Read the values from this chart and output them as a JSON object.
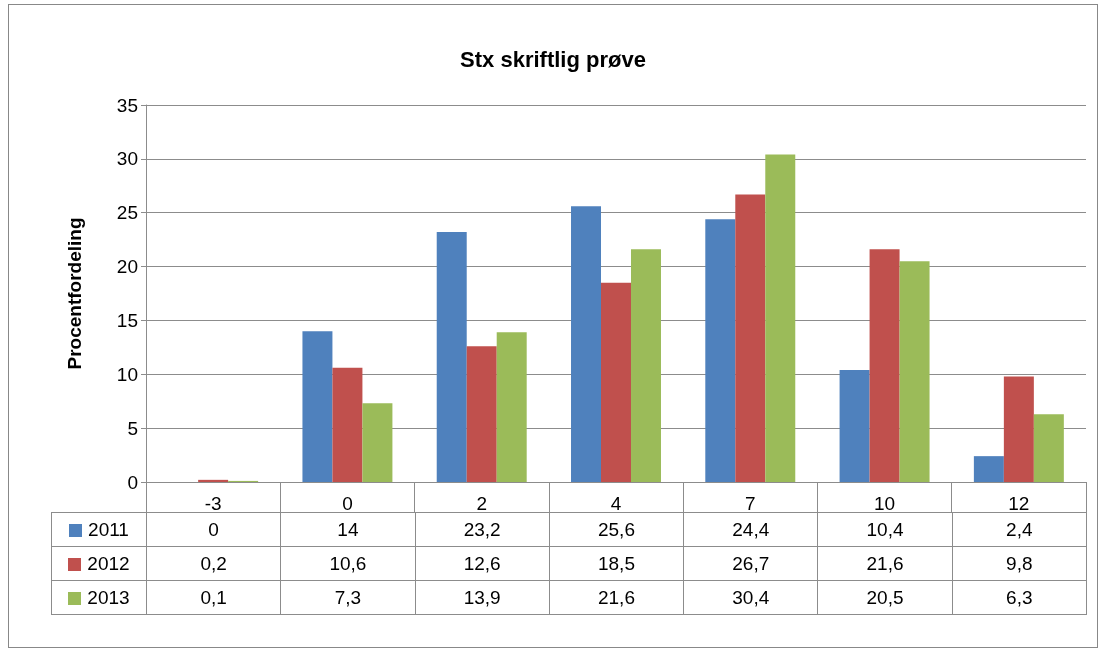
{
  "chart_data": {
    "type": "bar",
    "title": "Stx skriftlig prøve",
    "ylabel": "Procentfordeling",
    "categories": [
      "-3",
      "0",
      "2",
      "4",
      "7",
      "10",
      "12"
    ],
    "series": [
      {
        "name": "2011",
        "color": "#4f81bd",
        "values": [
          0,
          14,
          23.2,
          25.6,
          24.4,
          10.4,
          2.4
        ],
        "value_labels": [
          "0",
          "14",
          "23,2",
          "25,6",
          "24,4",
          "10,4",
          "2,4"
        ]
      },
      {
        "name": "2012",
        "color": "#c0504d",
        "values": [
          0.2,
          10.6,
          12.6,
          18.5,
          26.7,
          21.6,
          9.8
        ],
        "value_labels": [
          "0,2",
          "10,6",
          "12,6",
          "18,5",
          "26,7",
          "21,6",
          "9,8"
        ]
      },
      {
        "name": "2013",
        "color": "#9bbb59",
        "values": [
          0.1,
          7.3,
          13.9,
          21.6,
          30.4,
          20.5,
          6.3
        ],
        "value_labels": [
          "0,1",
          "7,3",
          "13,9",
          "21,6",
          "30,4",
          "20,5",
          "6,3"
        ]
      }
    ],
    "ylim": [
      0,
      35
    ],
    "yticks": [
      0,
      5,
      10,
      15,
      20,
      25,
      30,
      35
    ],
    "grid": "y",
    "legend": "bottom left"
  }
}
